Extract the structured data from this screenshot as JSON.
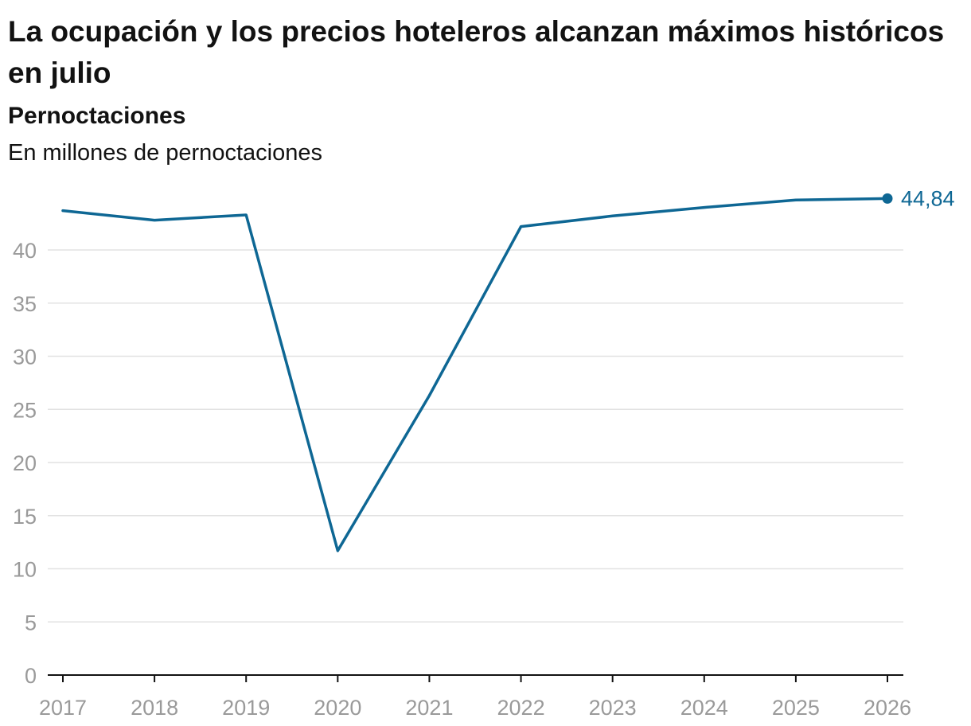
{
  "chart_data": {
    "type": "line",
    "title": "La ocupación y los precios hoteleros alcanzan máximos históricos en julio",
    "subtitle": "Pernoctaciones",
    "ylabel": "En millones de pernoctaciones",
    "x": [
      "2017",
      "2018",
      "2019",
      "2020",
      "2021",
      "2022",
      "2023",
      "2024",
      "2025",
      "2026"
    ],
    "series": [
      {
        "values": [
          43.7,
          42.8,
          43.3,
          11.7,
          26.3,
          42.2,
          43.2,
          44.0,
          44.7,
          44.84
        ],
        "color": "#0e6794"
      }
    ],
    "end_label": "44,84",
    "yticks": [
      0,
      5,
      10,
      15,
      20,
      25,
      30,
      35,
      40
    ],
    "ylim": [
      0,
      45
    ],
    "grid": true,
    "legend": "none"
  }
}
